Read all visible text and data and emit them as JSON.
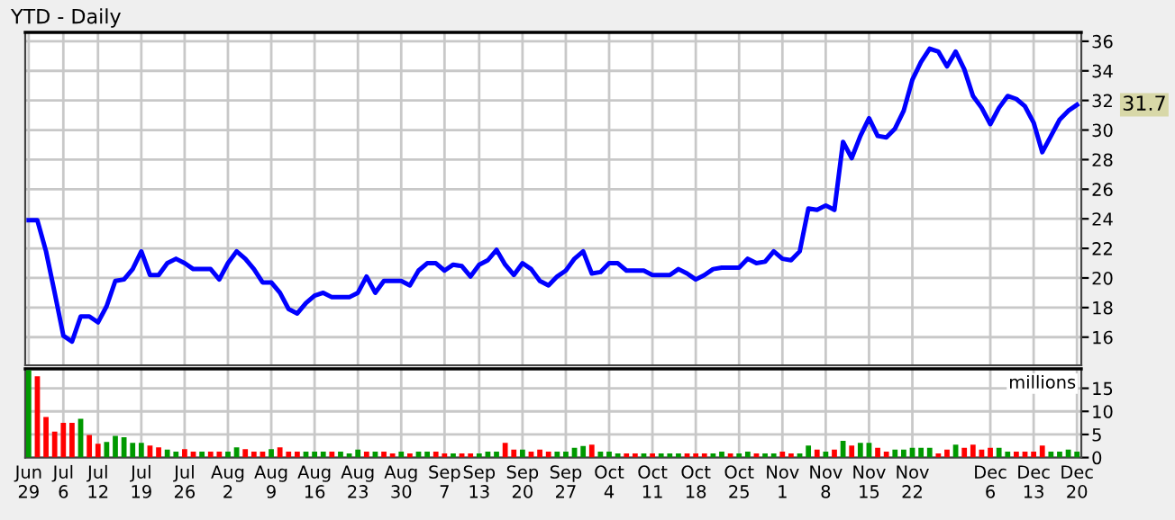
{
  "chart_data": [
    {
      "type": "line",
      "title": "YTD - Daily",
      "categories": [
        "Jun\n29",
        null,
        null,
        null,
        "Jul\n6",
        null,
        null,
        null,
        "Jul\n12",
        null,
        null,
        null,
        null,
        "Jul\n19",
        null,
        null,
        null,
        null,
        "Jul\n26",
        null,
        null,
        null,
        null,
        "Aug\n2",
        null,
        null,
        null,
        null,
        "Aug\n9",
        null,
        null,
        null,
        null,
        "Aug\n16",
        null,
        null,
        null,
        null,
        "Aug\n23",
        null,
        null,
        null,
        null,
        "Aug\n30",
        null,
        null,
        null,
        null,
        "Sep\n7",
        null,
        null,
        null,
        "Sep\n13",
        null,
        null,
        null,
        null,
        "Sep\n20",
        null,
        null,
        null,
        null,
        "Sep\n27",
        null,
        null,
        null,
        null,
        "Oct\n4",
        null,
        null,
        null,
        null,
        "Oct\n11",
        null,
        null,
        null,
        null,
        "Oct\n18",
        null,
        null,
        null,
        null,
        "Oct\n25",
        null,
        null,
        null,
        null,
        "Nov\n1",
        null,
        null,
        null,
        null,
        "Nov\n8",
        null,
        null,
        null,
        null,
        "Nov\n15",
        null,
        null,
        null,
        null,
        "Nov\n22",
        null,
        null,
        null,
        null,
        null,
        null,
        null,
        null,
        "Dec\n6",
        null,
        null,
        null,
        null,
        "Dec\n13",
        null,
        null,
        null,
        null,
        "Dec\n20"
      ],
      "series": [
        {
          "color": "#0000ff",
          "values": [
            23.9,
            23.9,
            21.8,
            19.0,
            16.1,
            15.7,
            17.4,
            17.4,
            17.0,
            18.1,
            19.8,
            19.9,
            20.6,
            21.8,
            20.2,
            20.2,
            21.0,
            21.3,
            21.0,
            20.6,
            20.6,
            20.6,
            19.9,
            21.0,
            21.8,
            21.3,
            20.6,
            19.7,
            19.7,
            19.0,
            17.9,
            17.6,
            18.3,
            18.8,
            19.0,
            18.7,
            18.7,
            18.7,
            19.0,
            20.1,
            19.0,
            19.8,
            19.8,
            19.8,
            19.5,
            20.5,
            21.0,
            21.0,
            20.5,
            20.9,
            20.8,
            20.1,
            20.9,
            21.2,
            21.9,
            20.9,
            20.2,
            21.0,
            20.6,
            19.8,
            19.5,
            20.1,
            20.5,
            21.3,
            21.8,
            20.3,
            20.4,
            21.0,
            21.0,
            20.5,
            20.5,
            20.5,
            20.2,
            20.2,
            20.2,
            20.6,
            20.3,
            19.9,
            20.2,
            20.6,
            20.7,
            20.7,
            20.7,
            21.3,
            21.0,
            21.1,
            21.8,
            21.3,
            21.2,
            21.8,
            24.7,
            24.6,
            24.9,
            24.6,
            29.2,
            28.1,
            29.6,
            30.8,
            29.6,
            29.5,
            30.1,
            31.3,
            33.4,
            34.6,
            35.5,
            35.3,
            34.3,
            35.3,
            34.1,
            32.3,
            31.5,
            30.4,
            31.5,
            32.3,
            32.1,
            31.6,
            30.5,
            28.5,
            29.6,
            30.7,
            31.3,
            31.7
          ]
        }
      ],
      "ylim": [
        14.1,
        36.6
      ],
      "yticks": [
        16,
        18,
        20,
        22,
        24,
        26,
        28,
        30,
        32,
        34,
        36
      ],
      "grid": true,
      "tick_labels": "y",
      "line_style": "solid",
      "annotations": [
        {
          "text": "31.7",
          "x": "Dec\n20",
          "y": 31.7
        }
      ]
    },
    {
      "type": "bar",
      "categories": [
        "Jun\n29",
        null,
        null,
        null,
        "Jul\n6",
        null,
        null,
        null,
        "Jul\n12",
        null,
        null,
        null,
        null,
        "Jul\n19",
        null,
        null,
        null,
        null,
        "Jul\n26",
        null,
        null,
        null,
        null,
        "Aug\n2",
        null,
        null,
        null,
        null,
        "Aug\n9",
        null,
        null,
        null,
        null,
        "Aug\n16",
        null,
        null,
        null,
        null,
        "Aug\n23",
        null,
        null,
        null,
        null,
        "Aug\n30",
        null,
        null,
        null,
        null,
        "Sep\n7",
        null,
        null,
        null,
        "Sep\n13",
        null,
        null,
        null,
        null,
        "Sep\n20",
        null,
        null,
        null,
        null,
        "Sep\n27",
        null,
        null,
        null,
        null,
        "Oct\n4",
        null,
        null,
        null,
        null,
        "Oct\n11",
        null,
        null,
        null,
        null,
        "Oct\n18",
        null,
        null,
        null,
        null,
        "Oct\n25",
        null,
        null,
        null,
        null,
        "Nov\n1",
        null,
        null,
        null,
        null,
        "Nov\n8",
        null,
        null,
        null,
        null,
        "Nov\n15",
        null,
        null,
        null,
        null,
        "Nov\n22",
        null,
        null,
        null,
        null,
        null,
        null,
        null,
        null,
        "Dec\n6",
        null,
        null,
        null,
        null,
        "Dec\n13",
        null,
        null,
        null,
        null,
        "Dec\n20"
      ],
      "values": [
        18.9,
        17.6,
        8.8,
        5.6,
        7.5,
        7.5,
        8.4,
        4.9,
        3.0,
        3.4,
        4.7,
        4.4,
        3.2,
        3.2,
        2.6,
        2.2,
        1.7,
        1.3,
        1.8,
        1.3,
        1.3,
        1.3,
        1.3,
        1.3,
        2.2,
        1.8,
        1.3,
        1.3,
        1.8,
        2.2,
        1.3,
        1.3,
        1.3,
        1.3,
        1.3,
        1.3,
        1.3,
        0.9,
        1.7,
        1.3,
        1.3,
        1.3,
        0.9,
        1.3,
        0.9,
        1.3,
        1.3,
        1.3,
        0.9,
        0.9,
        0.9,
        0.9,
        0.9,
        1.3,
        1.3,
        3.2,
        1.7,
        1.7,
        1.3,
        1.7,
        1.3,
        1.3,
        1.3,
        2.1,
        2.5,
        2.8,
        1.3,
        1.3,
        0.9,
        0.9,
        0.9,
        0.9,
        0.9,
        0.9,
        0.9,
        0.9,
        0.9,
        0.9,
        0.9,
        0.9,
        1.3,
        0.9,
        0.9,
        1.3,
        0.9,
        0.9,
        0.9,
        1.3,
        0.9,
        0.9,
        2.6,
        1.7,
        1.3,
        1.7,
        3.6,
        2.6,
        3.2,
        3.2,
        2.1,
        1.3,
        1.7,
        1.7,
        2.1,
        2.1,
        2.1,
        0.9,
        1.7,
        2.8,
        2.1,
        2.8,
        1.7,
        2.1,
        2.1,
        1.3,
        1.3,
        1.3,
        1.3,
        2.6,
        1.3,
        1.3,
        1.7,
        1.3
      ],
      "colors": [
        "#009900",
        "#ff0000",
        "#ff0000",
        "#ff0000",
        "#ff0000",
        "#ff0000",
        "#009900",
        "#ff0000",
        "#ff0000",
        "#009900",
        "#009900",
        "#009900",
        "#009900",
        "#009900",
        "#ff0000",
        "#ff0000",
        "#009900",
        "#009900",
        "#ff0000",
        "#ff0000",
        "#009900",
        "#ff0000",
        "#ff0000",
        "#009900",
        "#009900",
        "#ff0000",
        "#ff0000",
        "#ff0000",
        "#009900",
        "#ff0000",
        "#ff0000",
        "#ff0000",
        "#009900",
        "#009900",
        "#009900",
        "#ff0000",
        "#009900",
        "#009900",
        "#009900",
        "#ff0000",
        "#009900",
        "#ff0000",
        "#ff0000",
        "#009900",
        "#ff0000",
        "#009900",
        "#009900",
        "#ff0000",
        "#ff0000",
        "#009900",
        "#ff0000",
        "#ff0000",
        "#009900",
        "#009900",
        "#009900",
        "#ff0000",
        "#ff0000",
        "#009900",
        "#ff0000",
        "#ff0000",
        "#ff0000",
        "#009900",
        "#009900",
        "#009900",
        "#009900",
        "#ff0000",
        "#009900",
        "#009900",
        "#009900",
        "#ff0000",
        "#ff0000",
        "#009900",
        "#ff0000",
        "#009900",
        "#009900",
        "#009900",
        "#ff0000",
        "#ff0000",
        "#ff0000",
        "#009900",
        "#009900",
        "#ff0000",
        "#009900",
        "#009900",
        "#ff0000",
        "#009900",
        "#009900",
        "#ff0000",
        "#ff0000",
        "#009900",
        "#009900",
        "#ff0000",
        "#009900",
        "#ff0000",
        "#009900",
        "#ff0000",
        "#009900",
        "#009900",
        "#ff0000",
        "#ff0000",
        "#009900",
        "#009900",
        "#009900",
        "#009900",
        "#009900",
        "#ff0000",
        "#ff0000",
        "#009900",
        "#ff0000",
        "#ff0000",
        "#ff0000",
        "#ff0000",
        "#009900",
        "#009900",
        "#ff0000",
        "#ff0000",
        "#ff0000",
        "#ff0000",
        "#009900",
        "#009900",
        "#009900",
        "#009900"
      ],
      "ylim": [
        0,
        19.2
      ],
      "yticks": [
        0,
        5,
        10,
        15
      ],
      "grid": true,
      "annotations": [
        "millions"
      ]
    }
  ]
}
